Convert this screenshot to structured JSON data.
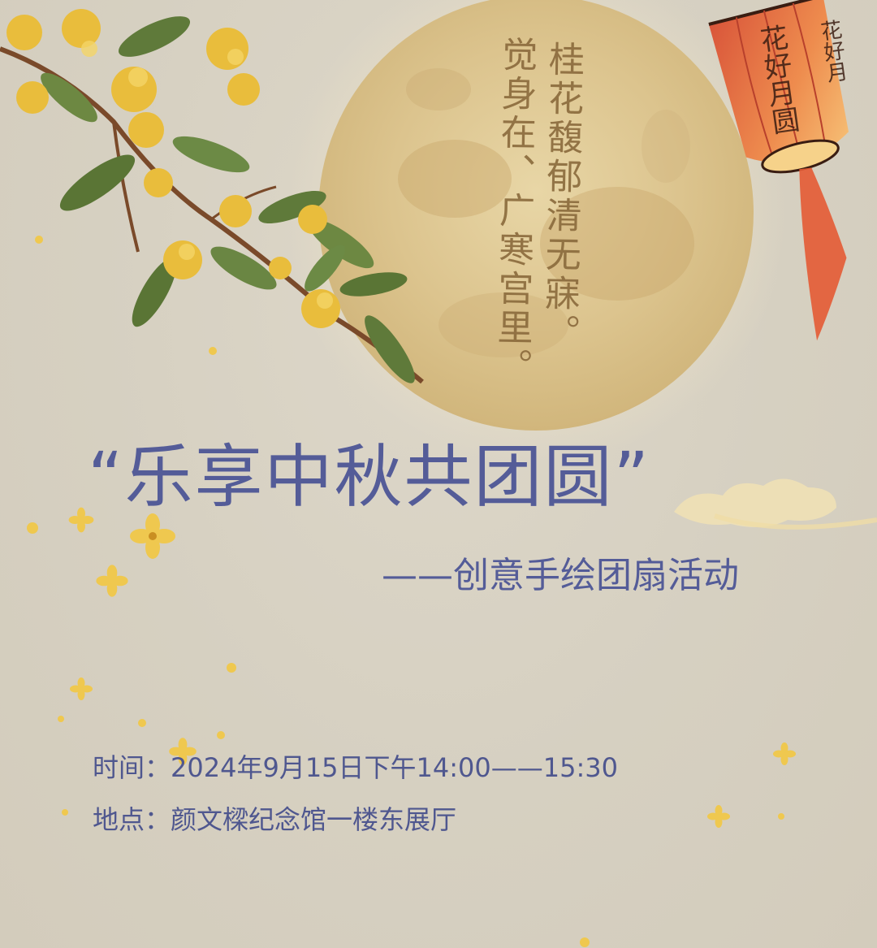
{
  "poem": {
    "line1": "桂花馥郁清无寐。",
    "line2": "觉身在、广寒宫里。"
  },
  "lantern": {
    "text1": "花好月圆",
    "text2": "花好月"
  },
  "title": "“乐享中秋共团圆”",
  "subtitle": "——创意手绘团扇活动",
  "info": {
    "time_label": "时间：",
    "time_value": "2024年9月15日下午14:00——15:30",
    "place_label": "地点：",
    "place_value": "颜文樑纪念馆一楼东展厅"
  },
  "colors": {
    "background": "#d8d2c3",
    "title": "#545c98",
    "moon": "#dcc48e",
    "lantern": "#e06a3c",
    "blossom": "#e9bd3c",
    "leaf": "#5f7a3a"
  },
  "icons": {
    "moon": "full-moon-icon",
    "lantern": "paper-lantern-icon",
    "branch": "osmanthus-branch-icon",
    "cloud": "auspicious-cloud-icon",
    "petal": "osmanthus-petal-icon"
  }
}
